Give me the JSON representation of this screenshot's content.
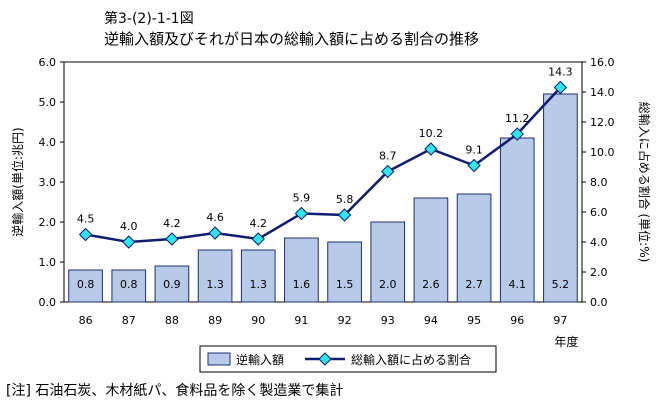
{
  "figure_label": "第3-(2)-1-1図",
  "title": "逆輸入額及びそれが日本の総輸入額に占める割合の推移",
  "note": "[注] 石油石炭、木材紙パ、食料品を除く製造業で集計",
  "colors": {
    "bar_fill": "#b7cbe9",
    "bar_stroke": "#1d2f6e",
    "line": "#0f1c70",
    "marker": "#2ee6f0",
    "marker_stroke": "#0f1c70"
  },
  "chart_data": {
    "type": "bar",
    "categories": [
      "86",
      "87",
      "88",
      "89",
      "90",
      "91",
      "92",
      "93",
      "94",
      "95",
      "96",
      "97"
    ],
    "xlabel": "年度",
    "series": [
      {
        "name": "逆輸入額",
        "type": "bar",
        "axis": "left",
        "values": [
          0.8,
          0.8,
          0.9,
          1.3,
          1.3,
          1.6,
          1.5,
          2.0,
          2.6,
          2.7,
          4.1,
          5.2
        ]
      },
      {
        "name": "総輸入額に占める割合",
        "type": "line",
        "axis": "right",
        "values": [
          4.5,
          4.0,
          4.2,
          4.6,
          4.2,
          5.9,
          5.8,
          8.7,
          10.2,
          9.1,
          11.2,
          14.3
        ]
      }
    ],
    "y_left": {
      "label": "逆輸入額(単位:兆円)",
      "range": [
        0,
        6
      ],
      "ticks": [
        "0.0",
        "1.0",
        "2.0",
        "3.0",
        "4.0",
        "5.0",
        "6.0"
      ]
    },
    "y_right": {
      "label": "総輸入に占める割合 (単位:%)",
      "range": [
        0,
        16
      ],
      "ticks": [
        "0.0",
        "2.0",
        "4.0",
        "6.0",
        "8.0",
        "10.0",
        "12.0",
        "14.0",
        "16.0"
      ]
    },
    "bar_labels": [
      "0.8",
      "0.8",
      "0.9",
      "1.3",
      "1.3",
      "1.6",
      "1.5",
      "2.0",
      "2.6",
      "2.7",
      "4.1",
      "5.2"
    ],
    "line_labels": [
      "4.5",
      "4.0",
      "4.2",
      "4.6",
      "4.2",
      "5.9",
      "5.8",
      "8.7",
      "10.2",
      "9.1",
      "11.2",
      "14.3"
    ],
    "grid": false,
    "legend_position": "bottom"
  }
}
